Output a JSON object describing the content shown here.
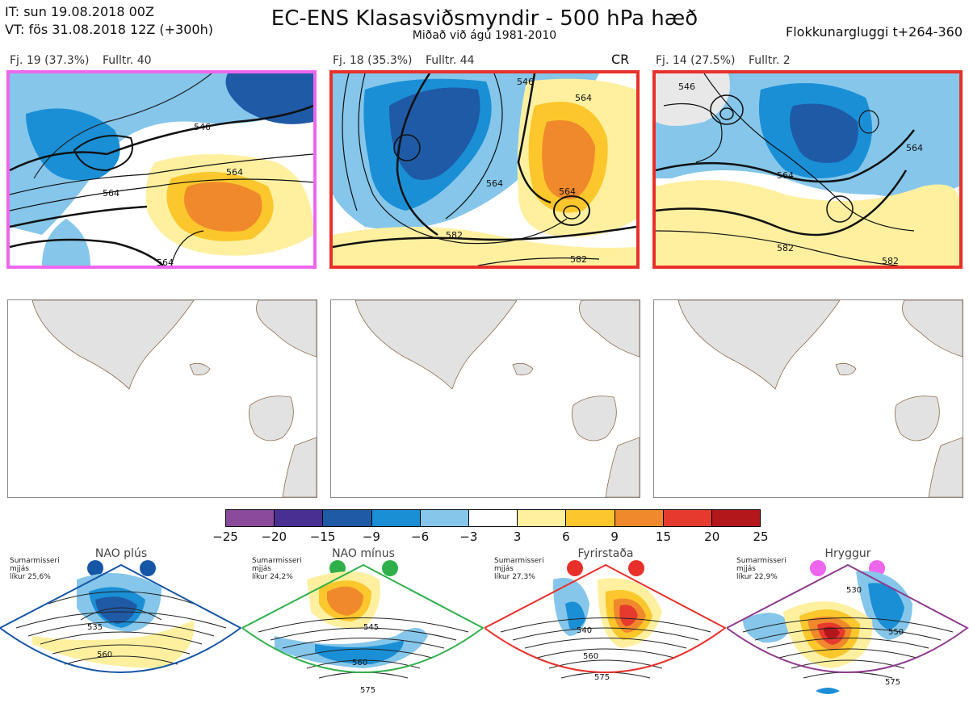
{
  "header": {
    "it_line": "IT: sun 19.08.2018 00Z",
    "vt_line": "VT: fös 31.08.2018 12Z  (+300h)",
    "title": "EC-ENS Klasasviðsmyndir - 500 hPa hæð",
    "subtitle": "Miðað við ágú 1981-2010",
    "window": "Flokkunargluggi t+264-360"
  },
  "clusters": [
    {
      "cluster": "Fj. 19 (37.3%)",
      "control": "Fulltr. 40",
      "border_color": "#ee66ee",
      "badge": "",
      "contour_labels": [
        "546",
        "564",
        "564",
        "564"
      ]
    },
    {
      "cluster": "Fj. 18 (35.3%)",
      "control": "Fulltr. 44",
      "border_color": "#e8302a",
      "badge": "CR",
      "contour_labels": [
        "546",
        "564",
        "564",
        "564",
        "582",
        "582"
      ]
    },
    {
      "cluster": "Fj. 14 (27.5%)",
      "control": "Fulltr. 2",
      "border_color": "#e8302a",
      "badge": "",
      "contour_labels": [
        "546",
        "564",
        "564",
        "582",
        "582"
      ]
    }
  ],
  "colorbar": {
    "ticks": [
      "−25",
      "−20",
      "−15",
      "−9",
      "−6",
      "−3",
      "3",
      "6",
      "9",
      "15",
      "20",
      "25"
    ],
    "colors": [
      "#8b4a9c",
      "#4a2f93",
      "#1f5aa6",
      "#1a8fd6",
      "#85c6ea",
      "#ffffff",
      "#fff0a0",
      "#fcc72c",
      "#f0892b",
      "#e63a2e",
      "#b3161b"
    ]
  },
  "regimes": [
    {
      "title": "NAO plús",
      "note": [
        "Sumarmisseri",
        "mjjás",
        "líkur 25,6%"
      ],
      "color": "#1656a6",
      "labels": [
        "535",
        "560"
      ]
    },
    {
      "title": "NAO mínus",
      "note": [
        "Sumarmisseri",
        "mjjás",
        "líkur 24,2%"
      ],
      "color": "#2fb04a",
      "labels": [
        "545",
        "560",
        "575"
      ]
    },
    {
      "title": "Fyrirstaða",
      "note": [
        "Sumarmisseri",
        "mjjás",
        "líkur 27,3%"
      ],
      "color": "#e8302a",
      "labels": [
        "540",
        "560",
        "575"
      ]
    },
    {
      "title": "Hryggur",
      "note": [
        "Sumarmisseri",
        "mjjás",
        "líkur 22,9%"
      ],
      "color": "#ee66ee",
      "labels": [
        "530",
        "550",
        "575"
      ]
    }
  ]
}
